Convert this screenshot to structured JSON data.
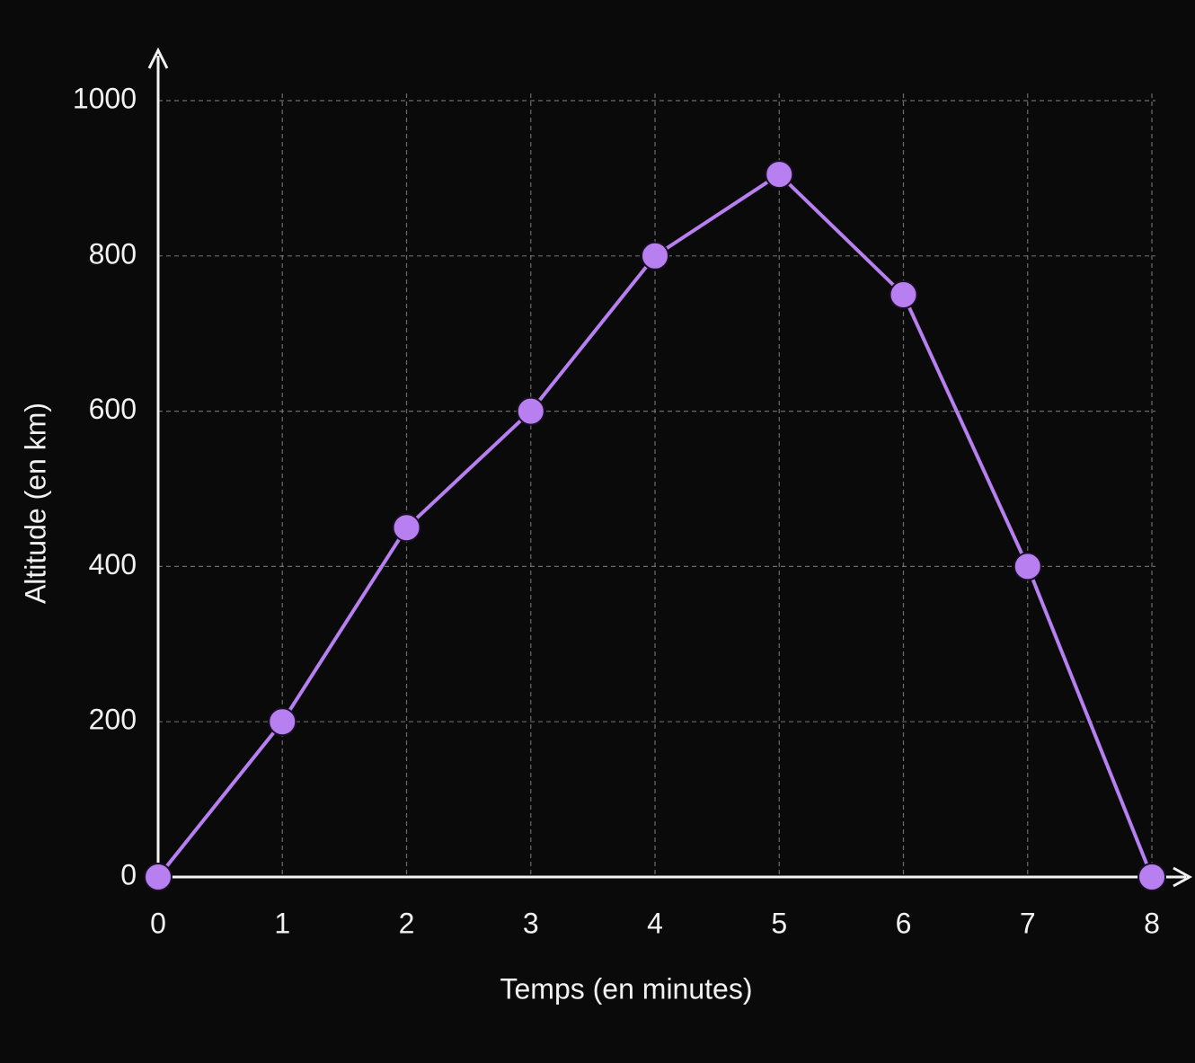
{
  "chart_data": {
    "type": "line",
    "x": [
      0,
      1,
      2,
      3,
      4,
      5,
      6,
      7,
      8
    ],
    "values": [
      0,
      200,
      450,
      600,
      800,
      905,
      750,
      400,
      0
    ],
    "color": "#b77ff0",
    "xlim": [
      0,
      8
    ],
    "xticks": [
      0,
      1,
      2,
      3,
      4,
      5,
      6,
      7,
      8
    ],
    "ylim": [
      0,
      1000
    ],
    "yticks": [
      0,
      200,
      400,
      600,
      800,
      1000
    ],
    "x_label": "Temps (en minutes)",
    "y_label": "Altitude (en km)",
    "grid": true
  }
}
